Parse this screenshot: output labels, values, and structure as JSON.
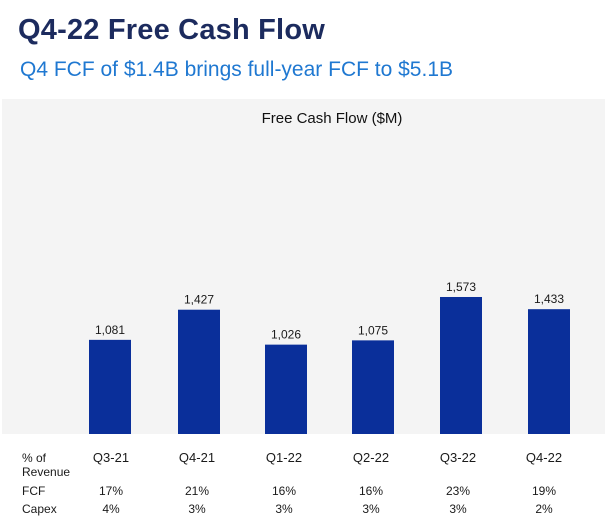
{
  "header": {
    "title": "Q4-22 Free Cash Flow",
    "subtitle": "Q4 FCF of $1.4B brings full-year FCF to $5.1B"
  },
  "colors": {
    "bar": "#0a2f9a",
    "title": "#1c2b5e",
    "subtitle": "#1f78d1",
    "panel": "#f4f4f4"
  },
  "chart_data": {
    "type": "bar",
    "title": "Free Cash Flow ($M)",
    "categories": [
      "Q3-21",
      "Q4-21",
      "Q1-22",
      "Q2-22",
      "Q3-22",
      "Q4-22"
    ],
    "values": [
      1081,
      1427,
      1026,
      1075,
      1573,
      1433
    ],
    "value_labels": [
      "1,081",
      "1,427",
      "1,026",
      "1,075",
      "1,573",
      "1,433"
    ],
    "ylim": [
      0,
      1700
    ],
    "xlabel": "",
    "ylabel": "",
    "grid": false
  },
  "table": {
    "header_line1": "% of",
    "header_line2": "Revenue",
    "rows": [
      {
        "label": "FCF",
        "values": [
          "17%",
          "21%",
          "16%",
          "16%",
          "23%",
          "19%"
        ]
      },
      {
        "label": "Capex",
        "values": [
          "4%",
          "3%",
          "3%",
          "3%",
          "3%",
          "2%"
        ]
      }
    ]
  }
}
